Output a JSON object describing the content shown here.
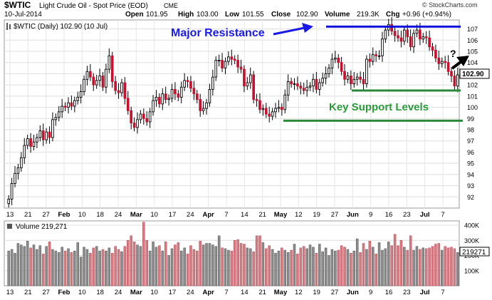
{
  "header": {
    "ticker": "$WTIC",
    "name": "Light Crude Oil - Spot Price (EOD)",
    "exchange": "CME",
    "date": "10-Jul-2014",
    "open_label": "Open",
    "open": "101.95",
    "high_label": "High",
    "high": "103.00",
    "low_label": "Low",
    "low": "101.55",
    "close_label": "Close",
    "close": "102.90",
    "volume_label": "Volume",
    "volume": "219.3K",
    "chg_label": "Chg",
    "chg": "+0.96 (+0.94%)",
    "brand": "© StockCharts.com",
    "legend": "$WTIC (Daily) 102.90 (10 Jul)",
    "volume_legend": "Volume 219,271"
  },
  "annotations": {
    "resistance": "Major Resistance",
    "support": "Key Support Levels",
    "question": "?"
  },
  "chart_data": [
    {
      "type": "candlestick",
      "title": "$WTIC (Daily) 102.90 (10 Jul)",
      "ylim": [
        91,
        107.8
      ],
      "y_ticks": [
        92,
        93,
        94,
        95,
        96,
        97,
        98,
        99,
        100,
        101,
        102,
        103,
        104,
        105,
        106,
        107
      ],
      "x_tick_labels": [
        "13",
        "21",
        "27",
        "Feb",
        "10",
        "18",
        "24",
        "Mar",
        "10",
        "17",
        "24",
        "Apr",
        "7",
        "14",
        "21",
        "May",
        "12",
        "19",
        "27",
        "Jun",
        "9",
        "16",
        "23",
        "Jul",
        "7"
      ],
      "last_price_label": "102.90",
      "levels": {
        "resistance": 107.2,
        "support_upper": 101.5,
        "support_lower": 98.8
      },
      "close": [
        91.8,
        93.2,
        94.1,
        94.6,
        95.5,
        96.6,
        97.2,
        96.5,
        96.9,
        97.3,
        97.9,
        97.1,
        97.8,
        97.3,
        98.9,
        99.1,
        99.6,
        100.1,
        100.0,
        100.4,
        100.1,
        100.6,
        100.9,
        101.4,
        102.5,
        103.2,
        102.7,
        102.0,
        102.4,
        102.8,
        101.8,
        103.4,
        104.6,
        102.3,
        101.5,
        101.3,
        102.2,
        100.8,
        99.7,
        98.6,
        98.2,
        98.9,
        99.4,
        99.0,
        98.7,
        99.6,
        100.6,
        100.9,
        100.3,
        101.2,
        100.7,
        100.8,
        101.6,
        101.2,
        100.9,
        101.8,
        102.4,
        102.3,
        101.7,
        101.2,
        100.7,
        99.7,
        99.9,
        100.4,
        101.6,
        102.7,
        104.2,
        104.2,
        103.5,
        104.1,
        104.5,
        104.3,
        104.2,
        103.6,
        103.4,
        101.9,
        102.2,
        102.9,
        100.7,
        100.6,
        99.8,
        99.9,
        99.4,
        99.2,
        99.6,
        99.9,
        100.0,
        99.8,
        101.1,
        102.3,
        102.1,
        102.1,
        101.9,
        101.7,
        101.5,
        101.8,
        101.9,
        102.5,
        101.6,
        102.2,
        102.6,
        103.0,
        103.5,
        104.3,
        104.4,
        104.0,
        103.2,
        102.5,
        102.8,
        102.1,
        102.5,
        102.7,
        102.5,
        102.1,
        104.3,
        104.1,
        104.7,
        104.6,
        104.6,
        106.1,
        106.9,
        107.4,
        106.8,
        106.4,
        106.2,
        105.9,
        106.9,
        106.3,
        105.4,
        106.6,
        106.9,
        106.1,
        106.3,
        106.2,
        105.4,
        105.1,
        104.4,
        103.9,
        104.1,
        104.0,
        103.2,
        102.8,
        101.9,
        102.9
      ],
      "open": [
        91.4,
        91.8,
        93.2,
        94.1,
        94.6,
        95.5,
        96.6,
        97.2,
        96.5,
        96.9,
        97.3,
        97.9,
        97.1,
        97.8,
        97.3,
        98.9,
        99.1,
        99.6,
        100.1,
        100.0,
        100.4,
        100.1,
        100.6,
        100.9,
        101.4,
        102.5,
        103.2,
        102.7,
        102.0,
        102.4,
        102.8,
        101.8,
        103.4,
        104.6,
        102.3,
        101.5,
        101.3,
        102.2,
        100.8,
        99.7,
        98.6,
        98.2,
        98.9,
        99.4,
        99.0,
        98.7,
        99.6,
        100.6,
        100.9,
        100.3,
        101.2,
        100.7,
        100.8,
        101.6,
        101.2,
        100.9,
        101.8,
        102.4,
        102.3,
        101.7,
        101.2,
        100.7,
        99.7,
        99.9,
        100.4,
        101.6,
        102.7,
        104.2,
        104.2,
        103.5,
        104.1,
        104.5,
        104.3,
        104.2,
        103.6,
        103.4,
        101.9,
        102.2,
        102.9,
        100.7,
        100.6,
        99.8,
        99.9,
        99.4,
        99.2,
        99.6,
        99.9,
        100.0,
        99.8,
        101.1,
        102.3,
        102.1,
        102.1,
        101.9,
        101.7,
        101.5,
        101.8,
        101.9,
        102.5,
        101.6,
        102.2,
        102.6,
        103.0,
        103.5,
        104.3,
        104.4,
        104.0,
        103.2,
        102.5,
        102.8,
        102.1,
        102.5,
        102.7,
        102.5,
        102.1,
        104.3,
        104.1,
        104.7,
        104.6,
        104.6,
        106.1,
        106.9,
        107.4,
        106.8,
        106.4,
        106.2,
        105.9,
        106.9,
        106.3,
        105.4,
        106.6,
        106.9,
        106.1,
        106.3,
        106.2,
        105.4,
        105.1,
        104.4,
        103.9,
        104.1,
        104.0,
        103.2,
        102.8,
        101.9
      ]
    },
    {
      "type": "bar",
      "title": "Volume 219,271",
      "ylim": [
        0,
        400000
      ],
      "y_tick_labels": [
        "100K",
        "200K",
        "300K",
        "400K"
      ],
      "last_value_label": "219271",
      "values": [
        230000,
        240000,
        215000,
        280000,
        270000,
        260000,
        295000,
        250000,
        270000,
        240000,
        265000,
        210000,
        260000,
        290000,
        240000,
        230000,
        220000,
        255000,
        230000,
        245000,
        220000,
        230000,
        285000,
        190000,
        255000,
        240000,
        215000,
        250000,
        260000,
        230000,
        240000,
        230000,
        250000,
        215000,
        260000,
        240000,
        225000,
        260000,
        300000,
        330000,
        290000,
        270000,
        260000,
        420000,
        300000,
        230000,
        290000,
        255000,
        265000,
        230000,
        290000,
        200000,
        245000,
        270000,
        285000,
        230000,
        250000,
        210000,
        265000,
        240000,
        230000,
        295000,
        270000,
        280000,
        280000,
        270000,
        260000,
        330000,
        250000,
        245000,
        235000,
        230000,
        300000,
        305000,
        280000,
        275000,
        250000,
        245000,
        225000,
        330000,
        330000,
        285000,
        245000,
        265000,
        240000,
        215000,
        230000,
        250000,
        235000,
        220000,
        235000,
        275000,
        210000,
        250000,
        260000,
        245000,
        270000,
        255000,
        215000,
        275000,
        225000,
        250000,
        200000,
        240000,
        230000,
        235000,
        265000,
        255000,
        240000,
        215000,
        230000,
        310000,
        220000,
        280000,
        240000,
        295000,
        255000,
        210000,
        285000,
        235000,
        245000,
        290000,
        265000,
        340000,
        265000,
        300000,
        255000,
        235000,
        330000,
        235000,
        260000,
        240000,
        250000,
        245000,
        250000,
        260000,
        275000,
        280000,
        235000,
        260000,
        250000,
        255000,
        245000,
        219271
      ]
    }
  ]
}
